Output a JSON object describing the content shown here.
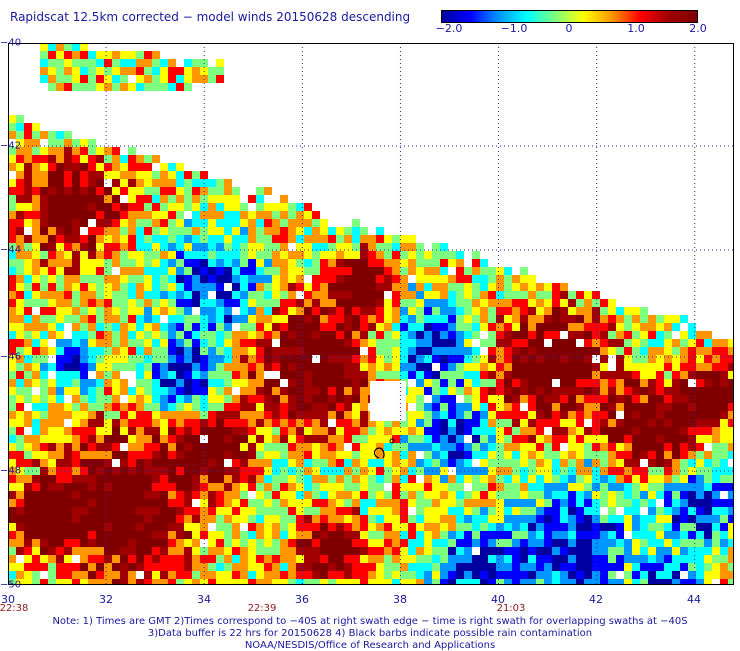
{
  "title": "Rapidscat 12.5km corrected − model winds 20150628 descending",
  "colorbar": {
    "ticks": [
      "−2.0",
      "−1.0",
      "0",
      "1.0",
      "2.0"
    ],
    "tick_values": [
      -2.0,
      -1.0,
      0,
      1.0,
      2.0
    ],
    "colors": [
      "#0000a0",
      "#0000ff",
      "#0096ff",
      "#00ffff",
      "#7fff7f",
      "#ffff00",
      "#ff9600",
      "#ff0000",
      "#a00000",
      "#800000"
    ]
  },
  "map": {
    "lon_range": [
      30,
      44.8
    ],
    "lat_range": [
      -40,
      -50
    ],
    "lat_labels": [
      "−40",
      "−42",
      "−44",
      "−46",
      "−48",
      "−50"
    ],
    "lat_values": [
      -40,
      -42,
      -44,
      -46,
      -48,
      -50
    ],
    "lon_labels": [
      "30",
      "32",
      "34",
      "36",
      "38",
      "40",
      "42",
      "44"
    ],
    "lon_values": [
      30,
      32,
      34,
      36,
      38,
      40,
      42,
      44
    ],
    "time_labels": [
      {
        "text": "22:38",
        "lon": 30
      },
      {
        "text": "22:39",
        "lon": 35
      },
      {
        "text": "21:03",
        "lon": 40.4
      }
    ]
  },
  "notes": [
    "Note: 1) Times are GMT 2)Times correspond to −40S at right swath edge − time is right swath for overlapping swaths at −40S",
    "3)Data buffer is 22 hrs for 20150628 4) Black barbs indicate possible rain contamination",
    "NOAA/NESDIS/Office of Research and Applications"
  ]
}
